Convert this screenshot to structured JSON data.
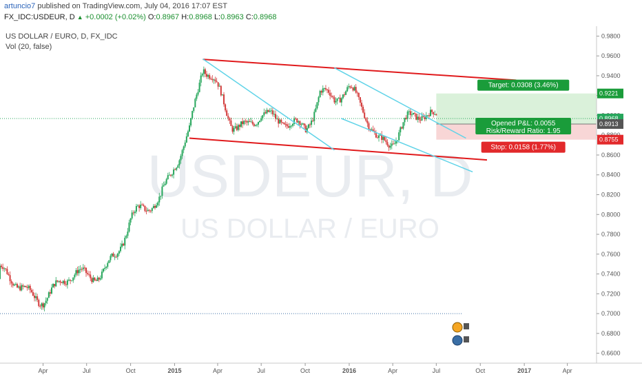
{
  "header": {
    "author": "artuncio7",
    "published_text": "published on TradingView.com, July 04, 2016 17:07 EST",
    "symbol": "FX_IDC:USDEUR, D",
    "change": "+0.0002 (+0.02%)",
    "open_label": "O:",
    "open": "0.8967",
    "high_label": "H:",
    "high": "0.8968",
    "low_label": "L:",
    "low": "0.8963",
    "close_label": "C:",
    "close": "0.8968"
  },
  "chart_title": "US DOLLAR / EURO, D, FX_IDC",
  "volume_label": "Vol (20, false)",
  "watermark": {
    "symbol": "USDEUR, D",
    "name": "US DOLLAR / EURO"
  },
  "position_tool": {
    "target": "Target: 0.0308 (3.46%)",
    "opened_pnl": "Opened P&L: 0.0055",
    "risk_reward": "Risk/Reward Ratio: 1.95",
    "stop": "Stop: 0.0158 (1.77%)"
  },
  "price_tags": {
    "target": "0.9221",
    "current": "0.8968",
    "entry": "0.8913",
    "stop": "0.8755"
  },
  "colors": {
    "up": "#26a65b",
    "down": "#d33b3b",
    "channel": "#e0191b",
    "trend": "#5fd3e8",
    "target_fill": "#d6f0d6",
    "stop_fill": "#f7d1d1"
  },
  "chart_data": {
    "type": "candlestick",
    "ylim": [
      0.65,
      0.99
    ],
    "ytick_values": [
      0.66,
      0.68,
      0.7,
      0.72,
      0.74,
      0.76,
      0.78,
      0.8,
      0.82,
      0.84,
      0.86,
      0.88,
      0.9,
      0.92,
      0.94,
      0.96,
      0.98
    ],
    "ytick_labels": [
      "0.6600",
      "0.6800",
      "0.7000",
      "0.7200",
      "0.7400",
      "0.7600",
      "0.7800",
      "0.8000",
      "0.8200",
      "0.8400",
      "0.8600",
      "0.8800",
      "0.9000",
      "0.9200",
      "0.9400",
      "0.9600",
      "0.9800"
    ],
    "x_start": "2014-01-01",
    "x_end": "2017-06-01",
    "xticks": [
      {
        "date": "2014-04-01",
        "label": "Apr"
      },
      {
        "date": "2014-07-01",
        "label": "Jul"
      },
      {
        "date": "2014-10-01",
        "label": "Oct"
      },
      {
        "date": "2015-01-01",
        "label": "2015"
      },
      {
        "date": "2015-04-01",
        "label": "Apr"
      },
      {
        "date": "2015-07-01",
        "label": "Jul"
      },
      {
        "date": "2015-10-01",
        "label": "Oct"
      },
      {
        "date": "2016-01-01",
        "label": "2016"
      },
      {
        "date": "2016-04-01",
        "label": "Apr"
      },
      {
        "date": "2016-07-01",
        "label": "Jul"
      },
      {
        "date": "2016-10-01",
        "label": "Oct"
      },
      {
        "date": "2017-01-01",
        "label": "2017"
      },
      {
        "date": "2017-04-01",
        "label": "Apr"
      }
    ],
    "price_path": [
      [
        "2014-01-01",
        0.735
      ],
      [
        "2014-02-01",
        0.73
      ],
      [
        "2014-03-01",
        0.725
      ],
      [
        "2014-04-01",
        0.722
      ],
      [
        "2014-05-01",
        0.725
      ],
      [
        "2014-06-01",
        0.733
      ],
      [
        "2014-07-01",
        0.735
      ],
      [
        "2014-08-01",
        0.748
      ],
      [
        "2014-09-01",
        0.765
      ],
      [
        "2014-10-01",
        0.79
      ],
      [
        "2014-11-01",
        0.8
      ],
      [
        "2014-12-01",
        0.815
      ],
      [
        "2015-01-01",
        0.86
      ],
      [
        "2015-02-01",
        0.885
      ],
      [
        "2015-03-01",
        0.945
      ],
      [
        "2015-04-01",
        0.92
      ],
      [
        "2015-05-01",
        0.895
      ],
      [
        "2015-06-01",
        0.895
      ],
      [
        "2015-07-01",
        0.905
      ],
      [
        "2015-08-01",
        0.885
      ],
      [
        "2015-09-01",
        0.89
      ],
      [
        "2015-10-01",
        0.89
      ],
      [
        "2015-11-01",
        0.93
      ],
      [
        "2015-12-01",
        0.915
      ],
      [
        "2016-01-01",
        0.918
      ],
      [
        "2016-02-01",
        0.905
      ],
      [
        "2016-03-01",
        0.88
      ],
      [
        "2016-04-01",
        0.88
      ],
      [
        "2016-05-01",
        0.89
      ],
      [
        "2016-06-01",
        0.895
      ],
      [
        "2016-07-01",
        0.8968
      ]
    ],
    "channel_lines": [
      {
        "name": "upper-channel-line",
        "x1": "2015-03-01",
        "y1": 0.9565,
        "x2": "2016-12-15",
        "y2": 0.9355
      },
      {
        "name": "lower-channel-line",
        "x1": "2015-02-01",
        "y1": 0.877,
        "x2": "2016-10-15",
        "y2": 0.855
      }
    ],
    "trend_lines": [
      {
        "name": "first-trend-line",
        "x1": "2015-03-01",
        "y1": 0.957,
        "x2": "2015-12-01",
        "y2": 0.865
      },
      {
        "name": "second-trend-line",
        "x1": "2015-12-01",
        "y1": 0.948,
        "x2": "2016-09-01",
        "y2": 0.877
      },
      {
        "name": "third-trend-line",
        "x1": "2015-12-15",
        "y1": 0.897,
        "x2": "2016-09-15",
        "y2": 0.843
      }
    ],
    "position": {
      "start": "2016-07-01",
      "end": "2017-06-01",
      "target": 0.9221,
      "entry": 0.8913,
      "stop": 0.8755
    },
    "current_price": 0.8968
  }
}
